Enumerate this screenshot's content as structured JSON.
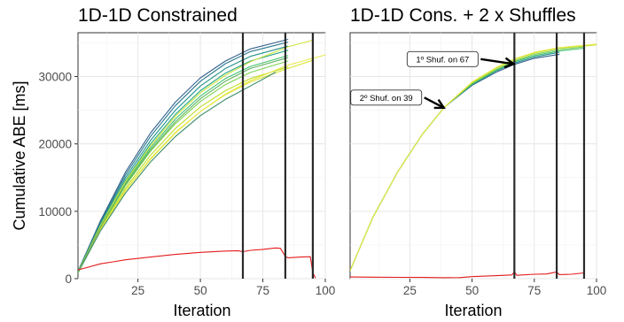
{
  "chart_data": [
    {
      "type": "line",
      "title": "1D-1D Constrained",
      "xlabel": "Iteration",
      "ylabel": "Cumulative ABE [ms]",
      "xlim": [
        1,
        100
      ],
      "ylim": [
        0,
        36500
      ],
      "x_ticks": [
        25,
        50,
        75,
        100
      ],
      "y_ticks": [
        0,
        10000,
        20000,
        30000
      ],
      "grid": true,
      "vlines": [
        67,
        84,
        95
      ],
      "annotations": [],
      "series": [
        {
          "color": "#35608d",
          "x": [
            1,
            10,
            20,
            30,
            40,
            50,
            60,
            70,
            85
          ],
          "values": [
            1100,
            8600,
            15800,
            21600,
            26200,
            29800,
            32300,
            34100,
            35500
          ]
        },
        {
          "color": "#2a788e",
          "x": [
            1,
            10,
            20,
            30,
            40,
            50,
            60,
            70,
            85
          ],
          "values": [
            1050,
            8400,
            15400,
            21100,
            25700,
            29300,
            31900,
            33700,
            35100
          ]
        },
        {
          "color": "#21918c",
          "x": [
            1,
            10,
            20,
            30,
            40,
            50,
            60,
            70,
            85
          ],
          "values": [
            1000,
            8200,
            15000,
            20500,
            25000,
            28600,
            31200,
            33000,
            34500
          ]
        },
        {
          "color": "#22a884",
          "x": [
            1,
            10,
            20,
            30,
            40,
            50,
            60,
            70,
            85
          ],
          "values": [
            950,
            8000,
            14600,
            20000,
            24400,
            27900,
            30500,
            32300,
            33900
          ]
        },
        {
          "color": "#44bf70",
          "x": [
            1,
            10,
            20,
            30,
            40,
            50,
            60,
            70,
            85
          ],
          "values": [
            900,
            7800,
            14200,
            19400,
            23700,
            27100,
            29700,
            31500,
            33100
          ]
        },
        {
          "color": "#7ad151",
          "x": [
            1,
            10,
            20,
            30,
            40,
            50,
            60,
            70,
            85
          ],
          "values": [
            900,
            7600,
            13800,
            18900,
            23000,
            26300,
            28800,
            30600,
            32300
          ]
        },
        {
          "color": "#bddf26",
          "x": [
            1,
            10,
            20,
            30,
            40,
            50,
            60,
            70,
            85
          ],
          "values": [
            850,
            7400,
            13400,
            18300,
            22300,
            25500,
            27900,
            29700,
            31400
          ]
        },
        {
          "color": "#d9e534",
          "x": [
            1,
            10,
            20,
            30,
            40,
            50,
            60,
            70,
            85,
            95
          ],
          "values": [
            850,
            7300,
            13100,
            17800,
            21700,
            24800,
            27300,
            29200,
            31200,
            32400
          ]
        },
        {
          "color": "#e8e84a",
          "x": [
            1,
            10,
            20,
            30,
            40,
            50,
            60,
            70,
            85,
            100
          ],
          "values": [
            850,
            7200,
            13000,
            17700,
            21600,
            24800,
            27400,
            29400,
            31700,
            33200
          ]
        },
        {
          "color": "#cfe33f",
          "x": [
            1,
            10,
            20,
            30,
            40,
            50,
            60,
            70,
            85,
            95
          ],
          "values": [
            950,
            7900,
            14400,
            19700,
            24100,
            27600,
            30200,
            32200,
            34400,
            35400
          ]
        },
        {
          "color": "#3b8a6a",
          "x": [
            1,
            10,
            20,
            30,
            40,
            50,
            60,
            70,
            80
          ],
          "values": [
            850,
            7100,
            12700,
            17300,
            21100,
            24200,
            26600,
            28600,
            30600
          ]
        },
        {
          "color": "#5fb25f",
          "x": [
            1,
            10,
            20,
            30,
            40,
            50,
            60,
            70,
            85
          ],
          "values": [
            900,
            7700,
            14000,
            19100,
            23300,
            26700,
            29300,
            31200,
            32800
          ]
        },
        {
          "color": "#e41a1c",
          "x": [
            1,
            5,
            10,
            15,
            20,
            30,
            40,
            50,
            60,
            65,
            67,
            70,
            75,
            80,
            82,
            84,
            85,
            90,
            94,
            95,
            96
          ],
          "values": [
            1300,
            1700,
            2200,
            2500,
            2800,
            3200,
            3600,
            3900,
            4100,
            4150,
            4000,
            4200,
            4350,
            4550,
            4500,
            3300,
            3100,
            3200,
            3250,
            900,
            150
          ]
        }
      ]
    },
    {
      "type": "line",
      "title": "1D-1D Cons. + 2 x Shuffles",
      "xlabel": "Iteration",
      "xlim": [
        1,
        100
      ],
      "ylim": [
        0,
        36500
      ],
      "x_ticks": [
        25,
        50,
        75,
        100
      ],
      "y_ticks": [
        0,
        10000,
        20000,
        30000
      ],
      "grid": true,
      "vlines": [
        67,
        84,
        95
      ],
      "annotations": [
        {
          "text": "1º Shuf. on 67",
          "x": 67,
          "y": 32000
        },
        {
          "text": "2º Shuf. on 39",
          "x": 39,
          "y": 25500
        }
      ],
      "series": [
        {
          "color": "#35608d",
          "x": [
            1,
            10,
            20,
            30,
            39,
            50,
            60,
            67,
            75,
            85
          ],
          "values": [
            1200,
            9000,
            15800,
            21400,
            25500,
            28700,
            30700,
            31800,
            32700,
            33300
          ]
        },
        {
          "color": "#21918c",
          "x": [
            1,
            10,
            20,
            30,
            39,
            50,
            60,
            67,
            75,
            85
          ],
          "values": [
            1200,
            9000,
            15800,
            21400,
            25500,
            28800,
            30900,
            32000,
            32900,
            33600
          ]
        },
        {
          "color": "#44bf70",
          "x": [
            1,
            10,
            20,
            30,
            39,
            50,
            60,
            67,
            75,
            85,
            95
          ],
          "values": [
            1200,
            9000,
            15800,
            21400,
            25500,
            28900,
            31000,
            32200,
            33100,
            33800,
            34200
          ]
        },
        {
          "color": "#7ad151",
          "x": [
            1,
            10,
            20,
            30,
            39,
            50,
            60,
            67,
            75,
            85,
            95
          ],
          "values": [
            1200,
            9000,
            15800,
            21400,
            25500,
            29000,
            31100,
            32300,
            33300,
            34000,
            34400
          ]
        },
        {
          "color": "#bddf26",
          "x": [
            1,
            10,
            20,
            30,
            39,
            50,
            60,
            67,
            75,
            85,
            100
          ],
          "values": [
            1200,
            9000,
            15800,
            21400,
            25500,
            29100,
            31300,
            32500,
            33500,
            34200,
            34700
          ]
        },
        {
          "color": "#e8e84a",
          "x": [
            1,
            10,
            20,
            30,
            39,
            50,
            60,
            67,
            75,
            85,
            100
          ],
          "values": [
            1200,
            9000,
            15800,
            21400,
            25500,
            29200,
            31400,
            32600,
            33600,
            34300,
            34800
          ]
        },
        {
          "color": "#e41a1c",
          "x": [
            1,
            10,
            20,
            30,
            39,
            45,
            50,
            60,
            66,
            67,
            68,
            75,
            80,
            84,
            85,
            90,
            95
          ],
          "values": [
            250,
            220,
            200,
            180,
            150,
            160,
            300,
            450,
            550,
            1000,
            500,
            650,
            700,
            1000,
            600,
            650,
            850
          ]
        }
      ]
    }
  ]
}
